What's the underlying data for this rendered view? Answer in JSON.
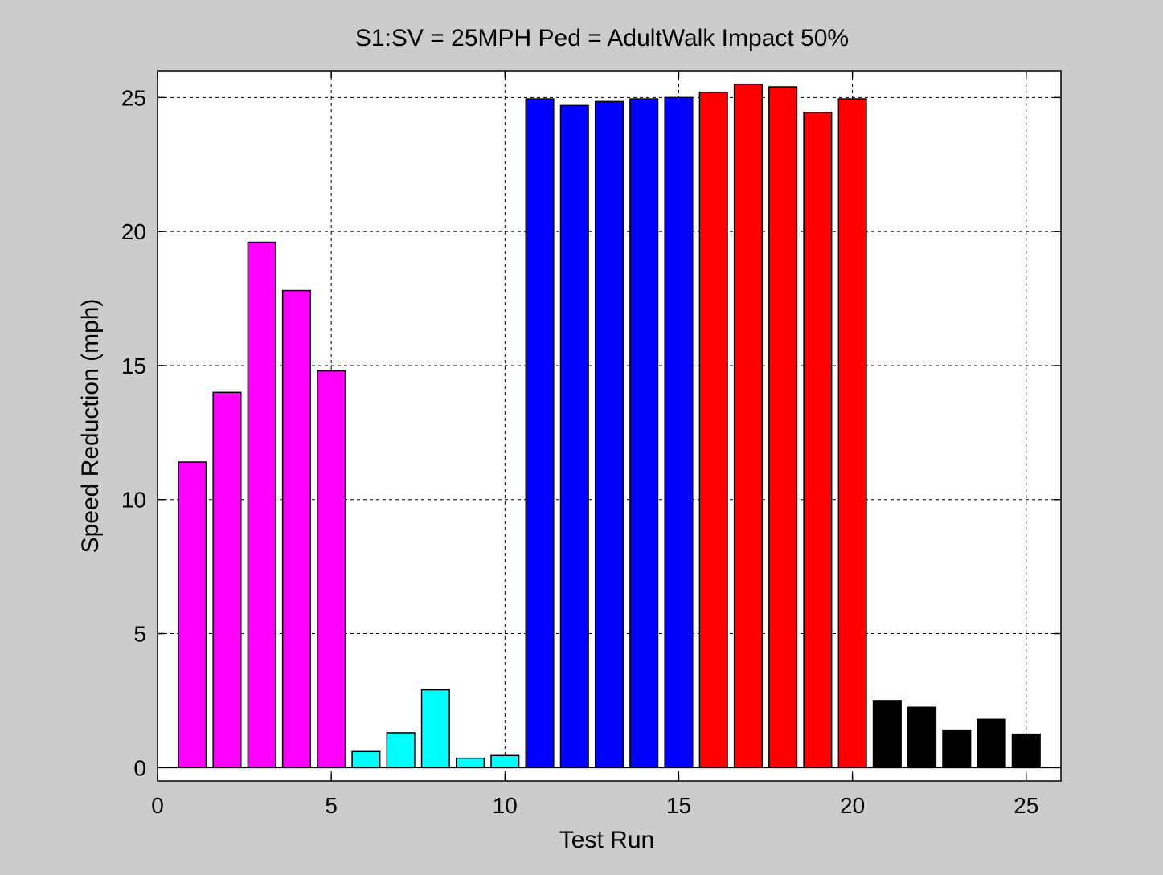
{
  "chart_data": {
    "type": "bar",
    "title": "S1:SV = 25MPH Ped = AdultWalk Impact 50%",
    "xlabel": "Test Run",
    "ylabel": "Speed Reduction (mph)",
    "xlim": [
      0,
      26
    ],
    "ylim": [
      -0.5,
      26
    ],
    "xticks": [
      0,
      5,
      10,
      15,
      20,
      25
    ],
    "yticks": [
      0,
      5,
      10,
      15,
      20,
      25
    ],
    "grid": true,
    "background": "#cccccc",
    "plot_background": "#ffffff",
    "series": [
      {
        "color": "#ff00ff",
        "x": [
          1,
          2,
          3,
          4,
          5
        ],
        "values": [
          11.4,
          14.0,
          19.6,
          17.8,
          14.8
        ]
      },
      {
        "color": "#00ffff",
        "x": [
          6,
          7,
          8,
          9,
          10
        ],
        "values": [
          0.6,
          1.3,
          2.9,
          0.35,
          0.45
        ]
      },
      {
        "color": "#0000ff",
        "x": [
          11,
          12,
          13,
          14,
          15
        ],
        "values": [
          24.95,
          24.7,
          24.85,
          24.95,
          25.0
        ]
      },
      {
        "color": "#ff0000",
        "x": [
          16,
          17,
          18,
          19,
          20
        ],
        "values": [
          25.2,
          25.5,
          25.4,
          24.45,
          24.95
        ]
      },
      {
        "color": "#000000",
        "x": [
          21,
          22,
          23,
          24,
          25
        ],
        "values": [
          2.5,
          2.25,
          1.4,
          1.8,
          1.25
        ]
      }
    ]
  }
}
